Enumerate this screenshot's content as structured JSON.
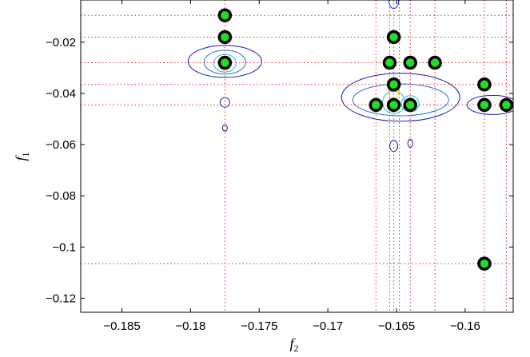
{
  "chart_data": {
    "type": "scatter",
    "title": "",
    "xlabel": "f",
    "xlabel_sub": "2",
    "ylabel": "f",
    "ylabel_sub": "1",
    "xlim": [
      -0.188,
      -0.1565
    ],
    "ylim": [
      -0.1255,
      -0.0035
    ],
    "xticks": [
      -0.185,
      -0.18,
      -0.175,
      -0.17,
      -0.165,
      -0.16
    ],
    "xtick_labels": [
      "−0.185",
      "−0.18",
      "−0.175",
      "−0.17",
      "−0.165",
      "−0.16"
    ],
    "yticks": [
      -0.02,
      -0.04,
      -0.06,
      -0.08,
      -0.1,
      -0.12
    ],
    "ytick_labels": [
      "−0.02",
      "−0.04",
      "−0.06",
      "−0.08",
      "−0.1",
      "−0.12"
    ],
    "grid": false,
    "vlines": [
      -0.1775,
      -0.1665,
      -0.1655,
      -0.1652,
      -0.1648,
      -0.164,
      -0.1622,
      -0.1586,
      -0.157
    ],
    "hlines": [
      -0.0095,
      -0.018,
      -0.028,
      -0.0365,
      -0.0445,
      -0.1065
    ],
    "marker_color": "#22dd22",
    "marker_edge": "#000000",
    "guide_color": "#e03030",
    "contour_colors": [
      "#1a1aa8",
      "#2a6fe0",
      "#20c0d0",
      "#e8d020",
      "#e05020"
    ],
    "points": [
      {
        "x": -0.1775,
        "y": -0.0095
      },
      {
        "x": -0.1775,
        "y": -0.018
      },
      {
        "x": -0.1775,
        "y": -0.028
      },
      {
        "x": -0.1652,
        "y": -0.018
      },
      {
        "x": -0.1655,
        "y": -0.028
      },
      {
        "x": -0.164,
        "y": -0.028
      },
      {
        "x": -0.1622,
        "y": -0.028
      },
      {
        "x": -0.1652,
        "y": -0.0365
      },
      {
        "x": -0.1586,
        "y": -0.0365
      },
      {
        "x": -0.1665,
        "y": -0.0445
      },
      {
        "x": -0.1652,
        "y": -0.0445
      },
      {
        "x": -0.164,
        "y": -0.0445
      },
      {
        "x": -0.1586,
        "y": -0.0445
      },
      {
        "x": -0.157,
        "y": -0.0445
      },
      {
        "x": -0.1586,
        "y": -0.1065
      }
    ]
  }
}
